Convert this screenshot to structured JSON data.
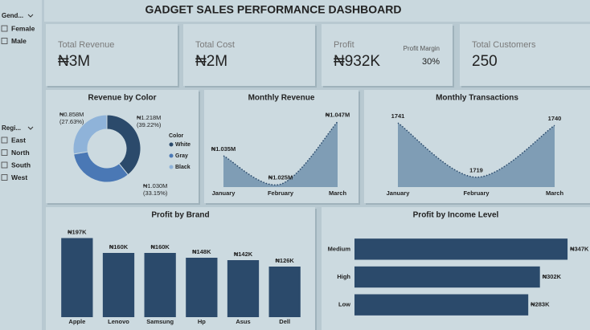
{
  "title": "GADGET SALES PERFORMANCE DASHBOARD",
  "filters": [
    {
      "title": "Gend...",
      "options": [
        "Female",
        "Male"
      ]
    },
    {
      "title": "Regi...",
      "options": [
        "East",
        "North",
        "South",
        "West"
      ]
    }
  ],
  "cards": [
    {
      "label": "Total Revenue",
      "value": "₦3M"
    },
    {
      "label": "Total Cost",
      "value": "₦2M"
    },
    {
      "label": "Profit",
      "value": "₦932K",
      "sub_label": "Profit Margin",
      "sub_value": "30%"
    },
    {
      "label": "Total Customers",
      "value": "250"
    }
  ],
  "chart_data": [
    {
      "type": "donut",
      "title": "Revenue by Color",
      "legend_title": "Color",
      "categories": [
        "White",
        "Gray",
        "Black"
      ],
      "values": [
        1.218,
        1.03,
        0.858
      ],
      "value_labels": [
        "₦1.218M",
        "₦1.030M",
        "₦0.858M"
      ],
      "percent_labels": [
        "(39.22%)",
        "(33.15%)",
        "(27.63%)"
      ],
      "colors": [
        "#2b4a6b",
        "#4a78b5",
        "#8fb3d9"
      ]
    },
    {
      "type": "area",
      "title": "Monthly Revenue",
      "categories": [
        "January",
        "February",
        "March"
      ],
      "values": [
        1.035,
        1.025,
        1.047
      ],
      "value_labels": [
        "₦1.035M",
        "₦1.025M",
        "₦1.047M"
      ],
      "ylim": [
        1.024,
        1.048
      ],
      "color": "#7f9db5",
      "line_color": "#2b4a6b"
    },
    {
      "type": "area",
      "title": "Monthly Transactions",
      "categories": [
        "January",
        "February",
        "March"
      ],
      "values": [
        1741,
        1719,
        1740
      ],
      "ylim": [
        1715,
        1742
      ],
      "color": "#7f9db5",
      "line_color": "#2b4a6b"
    },
    {
      "type": "bar",
      "title": "Profit by Brand",
      "categories": [
        "Apple",
        "Lenovo",
        "Samsung",
        "Hp",
        "Asus",
        "Dell"
      ],
      "values": [
        197,
        160,
        160,
        148,
        142,
        126
      ],
      "value_labels": [
        "₦197K",
        "₦160K",
        "₦160K",
        "₦148K",
        "₦142K",
        "₦126K"
      ],
      "ylim": [
        0,
        220
      ],
      "color": "#2b4a6b"
    },
    {
      "type": "hbar",
      "title": "Profit by Income Level",
      "categories": [
        "Medium",
        "High",
        "Low"
      ],
      "values": [
        347,
        302,
        283
      ],
      "value_labels": [
        "₦347K",
        "₦302K",
        "₦283K"
      ],
      "xlim": [
        0,
        360
      ],
      "color": "#2b4a6b"
    }
  ]
}
